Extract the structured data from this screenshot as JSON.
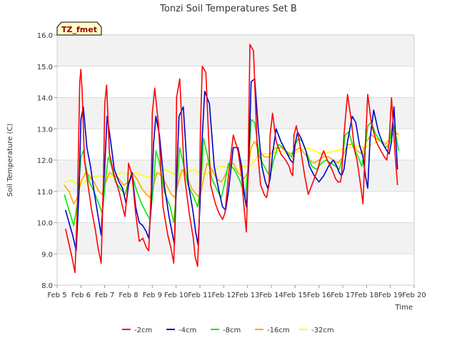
{
  "chart_data": {
    "type": "line",
    "title": "Tonzi Soil Temperatures Set B",
    "xlabel": "Time",
    "ylabel": "Soil Temperature (C)",
    "xlim": [
      5,
      20
    ],
    "ylim": [
      8.0,
      16.0
    ],
    "x_ticks": [
      5,
      6,
      7,
      8,
      9,
      10,
      11,
      12,
      13,
      14,
      15,
      16,
      17,
      18,
      19,
      20
    ],
    "x_tick_labels": [
      "Feb 5",
      "Feb 6",
      "Feb 7",
      "Feb 8",
      "Feb 9",
      "Feb 10",
      "Feb 11",
      "Feb 12",
      "Feb 13",
      "Feb 14",
      "Feb 15",
      "Feb 16",
      "Feb 17",
      "Feb 18",
      "Feb 19",
      "Feb 20"
    ],
    "y_ticks": [
      8.0,
      9.0,
      10.0,
      11.0,
      12.0,
      13.0,
      14.0,
      15.0,
      16.0
    ],
    "y_tick_labels": [
      "8.0",
      "9.0",
      "10.0",
      "11.0",
      "12.0",
      "13.0",
      "14.0",
      "15.0",
      "16.0"
    ],
    "grid": "horizontal bands",
    "legend_position": "bottom-center",
    "annotation": "TZ_fmet",
    "series": [
      {
        "name": "-2cm",
        "color": "#ff0000",
        "x": [
          5.35,
          5.5,
          5.62,
          5.75,
          5.85,
          5.95,
          6.0,
          6.05,
          6.15,
          6.3,
          6.45,
          6.6,
          6.72,
          6.85,
          6.95,
          7.0,
          7.08,
          7.2,
          7.4,
          7.6,
          7.75,
          7.85,
          7.95,
          8.0,
          8.15,
          8.3,
          8.45,
          8.6,
          8.75,
          8.85,
          8.95,
          9.0,
          9.1,
          9.25,
          9.45,
          9.65,
          9.78,
          9.9,
          9.97,
          10.02,
          10.15,
          10.35,
          10.55,
          10.72,
          10.8,
          10.9,
          10.97,
          11.02,
          11.1,
          11.25,
          11.45,
          11.65,
          11.8,
          11.95,
          12.05,
          12.2,
          12.4,
          12.6,
          12.75,
          12.85,
          12.95,
          13.02,
          13.1,
          13.25,
          13.4,
          13.55,
          13.7,
          13.8,
          13.9,
          13.95,
          14.05,
          14.2,
          14.4,
          14.6,
          14.75,
          14.82,
          14.9,
          14.95,
          15.05,
          15.2,
          15.4,
          15.55,
          15.7,
          15.8,
          15.95,
          16.05,
          16.2,
          16.35,
          16.55,
          16.7,
          16.8,
          16.9,
          16.95,
          17.05,
          17.2,
          17.35,
          17.5,
          17.6,
          17.75,
          17.85,
          17.95,
          18.05,
          18.2,
          18.4,
          18.6,
          18.75,
          18.85,
          18.95,
          19.05,
          19.2,
          19.3
        ],
        "y": [
          9.8,
          9.3,
          8.9,
          8.4,
          10.5,
          14.5,
          14.9,
          14.2,
          12.0,
          11.2,
          10.4,
          9.8,
          9.2,
          8.7,
          11.5,
          13.8,
          14.4,
          12.2,
          11.5,
          11.0,
          10.5,
          10.2,
          11.0,
          11.9,
          11.5,
          10.3,
          9.4,
          9.5,
          9.2,
          9.1,
          11.0,
          13.5,
          14.3,
          13.2,
          10.5,
          9.6,
          9.2,
          8.7,
          10.5,
          14.0,
          14.6,
          11.5,
          10.3,
          9.5,
          8.9,
          8.6,
          10.0,
          13.0,
          15.0,
          14.8,
          11.2,
          10.6,
          10.3,
          10.1,
          10.3,
          11.5,
          12.8,
          12.3,
          11.5,
          10.5,
          9.7,
          11.5,
          15.7,
          15.5,
          12.5,
          11.2,
          10.9,
          10.8,
          11.2,
          12.8,
          13.5,
          12.6,
          12.2,
          12.0,
          11.8,
          11.6,
          11.5,
          12.8,
          13.1,
          12.5,
          11.5,
          10.9,
          11.2,
          11.4,
          11.7,
          12.0,
          12.3,
          12.0,
          11.7,
          11.4,
          11.3,
          11.3,
          11.5,
          12.8,
          14.1,
          13.3,
          12.3,
          12.0,
          11.2,
          10.6,
          12.5,
          14.1,
          13.2,
          12.6,
          12.3,
          12.1,
          12.0,
          12.6,
          14.0,
          12.2,
          11.2
        ]
      },
      {
        "name": "-4cm",
        "color": "#0000cc",
        "x": [
          5.35,
          5.5,
          5.65,
          5.8,
          5.92,
          6.0,
          6.1,
          6.25,
          6.4,
          6.55,
          6.7,
          6.85,
          7.0,
          7.1,
          7.25,
          7.4,
          7.6,
          7.75,
          7.9,
          8.0,
          8.15,
          8.3,
          8.45,
          8.6,
          8.75,
          8.85,
          8.95,
          9.05,
          9.15,
          9.3,
          9.5,
          9.7,
          9.85,
          9.93,
          10.0,
          10.12,
          10.3,
          10.5,
          10.7,
          10.82,
          10.92,
          11.0,
          11.08,
          11.2,
          11.4,
          11.6,
          11.8,
          11.95,
          12.08,
          12.2,
          12.4,
          12.6,
          12.75,
          12.85,
          12.95,
          13.05,
          13.15,
          13.3,
          13.45,
          13.6,
          13.75,
          13.85,
          13.95,
          14.05,
          14.2,
          14.4,
          14.6,
          14.8,
          14.92,
          15.0,
          15.1,
          15.25,
          15.45,
          15.6,
          15.8,
          16.0,
          16.2,
          16.4,
          16.6,
          16.75,
          16.85,
          16.95,
          17.05,
          17.2,
          17.4,
          17.55,
          17.7,
          17.85,
          17.95,
          18.05,
          18.15,
          18.3,
          18.5,
          18.7,
          18.85,
          18.95,
          19.05,
          19.15,
          19.3
        ],
        "y": [
          10.4,
          10.0,
          9.6,
          9.1,
          11.0,
          13.3,
          13.7,
          12.4,
          11.8,
          11.0,
          10.3,
          9.6,
          11.8,
          13.4,
          12.6,
          11.7,
          11.3,
          11.1,
          10.6,
          11.2,
          11.6,
          10.5,
          10.0,
          9.9,
          9.7,
          9.5,
          10.5,
          12.5,
          13.4,
          12.8,
          11.2,
          10.2,
          9.6,
          9.3,
          11.0,
          13.4,
          13.7,
          11.3,
          10.4,
          9.7,
          9.3,
          10.5,
          12.5,
          14.2,
          13.8,
          11.8,
          11.0,
          10.5,
          10.4,
          11.0,
          12.4,
          12.4,
          11.8,
          11.0,
          10.5,
          11.8,
          14.5,
          14.6,
          13.0,
          11.8,
          11.3,
          11.1,
          11.4,
          12.2,
          13.0,
          12.6,
          12.3,
          12.0,
          11.9,
          12.5,
          12.9,
          12.7,
          12.3,
          11.8,
          11.5,
          11.3,
          11.5,
          11.8,
          12.0,
          11.8,
          11.6,
          11.5,
          11.7,
          12.6,
          13.4,
          13.2,
          12.5,
          12.1,
          11.5,
          11.1,
          12.7,
          13.6,
          12.9,
          12.5,
          12.3,
          12.2,
          12.6,
          13.7,
          11.7
        ]
      },
      {
        "name": "-8cm",
        "color": "#00ee00",
        "x": [
          5.3,
          5.5,
          5.7,
          5.85,
          6.0,
          6.1,
          6.2,
          6.35,
          6.55,
          6.75,
          6.9,
          7.05,
          7.15,
          7.25,
          7.45,
          7.65,
          7.85,
          8.0,
          8.15,
          8.35,
          8.55,
          8.75,
          8.9,
          9.05,
          9.15,
          9.3,
          9.5,
          9.75,
          9.9,
          10.05,
          10.15,
          10.3,
          10.5,
          10.75,
          10.9,
          11.05,
          11.15,
          11.3,
          11.5,
          11.75,
          11.9,
          12.05,
          12.2,
          12.45,
          12.7,
          12.9,
          13.05,
          13.15,
          13.3,
          13.5,
          13.7,
          13.85,
          13.95,
          14.1,
          14.3,
          14.5,
          14.7,
          14.85,
          15.0,
          15.15,
          15.3,
          15.5,
          15.7,
          15.9,
          16.1,
          16.3,
          16.5,
          16.7,
          16.85,
          17.0,
          17.1,
          17.25,
          17.45,
          17.65,
          17.8,
          17.95,
          18.05,
          18.2,
          18.4,
          18.6,
          18.8,
          18.95,
          19.1,
          19.2,
          19.35
        ],
        "y": [
          10.9,
          10.4,
          9.9,
          10.6,
          12.1,
          12.3,
          11.8,
          11.3,
          11.0,
          10.6,
          10.3,
          11.5,
          12.1,
          11.9,
          11.3,
          11.1,
          10.9,
          11.3,
          11.5,
          11.0,
          10.6,
          10.3,
          10.1,
          11.2,
          12.3,
          11.9,
          11.0,
          10.5,
          10.0,
          11.3,
          12.4,
          11.9,
          11.2,
          10.8,
          10.5,
          11.3,
          12.7,
          12.2,
          11.4,
          11.0,
          10.8,
          11.3,
          11.9,
          11.7,
          11.3,
          10.8,
          12.0,
          13.3,
          13.2,
          12.1,
          11.8,
          11.6,
          11.5,
          12.0,
          12.5,
          12.4,
          12.2,
          12.1,
          12.5,
          12.7,
          12.6,
          12.2,
          11.8,
          11.7,
          11.9,
          12.0,
          11.9,
          11.8,
          11.7,
          12.1,
          12.8,
          12.9,
          12.4,
          12.1,
          11.8,
          12.4,
          13.1,
          13.2,
          12.8,
          12.6,
          12.4,
          12.5,
          13.2,
          12.9,
          12.3
        ]
      },
      {
        "name": "-16cm",
        "color": "#ffa500",
        "x": [
          5.3,
          5.5,
          5.7,
          5.85,
          6.0,
          6.2,
          6.35,
          6.55,
          6.75,
          6.9,
          7.05,
          7.2,
          7.4,
          7.6,
          7.8,
          8.0,
          8.15,
          8.35,
          8.55,
          8.75,
          8.9,
          9.05,
          9.2,
          9.4,
          9.6,
          9.8,
          9.95,
          10.1,
          10.25,
          10.45,
          10.65,
          10.85,
          11.0,
          11.15,
          11.3,
          11.5,
          11.7,
          11.9,
          12.05,
          12.2,
          12.4,
          12.6,
          12.85,
          13.0,
          13.15,
          13.3,
          13.5,
          13.7,
          13.9,
          14.05,
          14.2,
          14.4,
          14.6,
          14.8,
          15.0,
          15.2,
          15.4,
          15.6,
          15.8,
          16.0,
          16.2,
          16.4,
          16.6,
          16.8,
          17.0,
          17.2,
          17.4,
          17.6,
          17.8,
          18.0,
          18.2,
          18.4,
          18.6,
          18.8,
          19.0,
          19.2,
          19.35
        ],
        "y": [
          11.2,
          11.0,
          10.6,
          10.8,
          11.3,
          11.6,
          11.5,
          11.3,
          11.0,
          10.9,
          11.3,
          11.6,
          11.5,
          11.4,
          11.2,
          11.3,
          11.6,
          11.4,
          11.1,
          10.9,
          10.8,
          11.2,
          11.6,
          11.5,
          11.2,
          10.9,
          10.8,
          11.3,
          11.7,
          11.5,
          11.1,
          10.9,
          10.8,
          11.4,
          11.9,
          11.7,
          11.4,
          11.3,
          11.5,
          11.8,
          11.9,
          11.6,
          11.4,
          11.6,
          12.4,
          12.6,
          12.3,
          12.1,
          12.1,
          12.3,
          12.4,
          12.4,
          12.3,
          12.2,
          12.3,
          12.4,
          12.2,
          12.0,
          11.9,
          12.0,
          12.1,
          12.1,
          12.0,
          11.9,
          12.1,
          12.5,
          12.5,
          12.3,
          12.2,
          12.6,
          12.8,
          12.7,
          12.6,
          12.5,
          12.7,
          12.9,
          12.8
        ]
      },
      {
        "name": "-32cm",
        "color": "#ffff00",
        "x": [
          5.3,
          5.6,
          5.9,
          6.2,
          6.5,
          6.8,
          7.1,
          7.4,
          7.7,
          8.0,
          8.3,
          8.6,
          8.9,
          9.2,
          9.5,
          9.8,
          10.1,
          10.4,
          10.7,
          11.0,
          11.3,
          11.6,
          11.9,
          12.2,
          12.5,
          12.8,
          13.1,
          13.4,
          13.7,
          14.0,
          14.3,
          14.6,
          14.9,
          15.2,
          15.5,
          15.8,
          16.1,
          16.4,
          16.7,
          17.0,
          17.3,
          17.6,
          17.9,
          18.2,
          18.5,
          18.8,
          19.1,
          19.35
        ],
        "y": [
          11.3,
          11.35,
          11.2,
          11.3,
          11.45,
          11.5,
          11.45,
          11.5,
          11.6,
          11.55,
          11.6,
          11.5,
          11.45,
          11.55,
          11.7,
          11.6,
          11.5,
          11.6,
          11.7,
          11.6,
          11.55,
          11.7,
          11.8,
          11.75,
          11.7,
          11.8,
          11.8,
          12.1,
          12.2,
          12.2,
          12.3,
          12.25,
          12.2,
          12.3,
          12.4,
          12.3,
          12.2,
          12.25,
          12.3,
          12.35,
          12.4,
          12.45,
          12.4,
          12.5,
          12.6,
          12.6,
          12.6,
          12.7
        ]
      }
    ]
  }
}
